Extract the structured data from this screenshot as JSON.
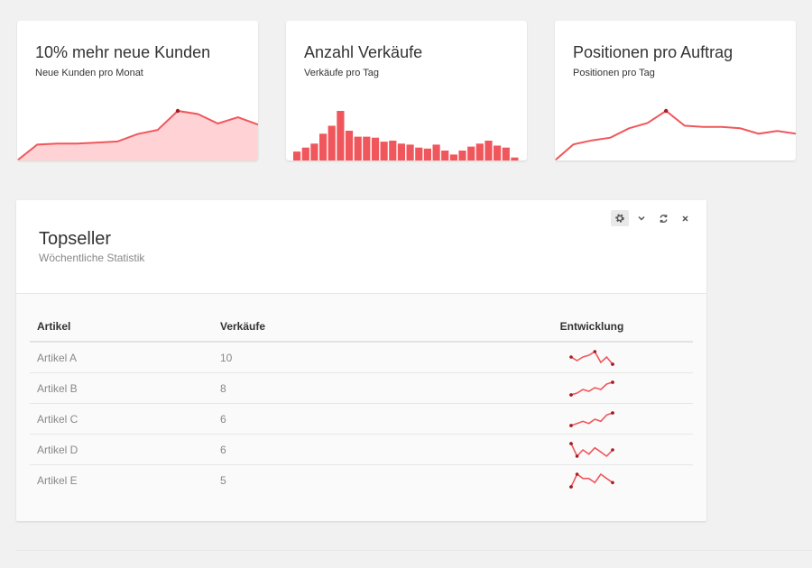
{
  "stats": [
    {
      "title": "10% mehr neue Kunden",
      "subtitle": "Neue Kunden pro Monat",
      "chart_type": "area",
      "values": [
        0,
        15,
        16,
        16,
        17,
        18,
        25,
        29,
        47,
        44,
        35,
        41,
        34
      ],
      "highlight_index": 8,
      "color": "#f0575c",
      "fill": "#ffd3d5"
    },
    {
      "title": "Anzahl Verkäufe",
      "subtitle": "Verkäufe pro Tag",
      "chart_type": "bar",
      "values": [
        9,
        13,
        17,
        27,
        35,
        50,
        30,
        24,
        24,
        23,
        19,
        20,
        17,
        16,
        13,
        12,
        16,
        10,
        6,
        10,
        14,
        17,
        20,
        15,
        13,
        3
      ],
      "color": "#f0575c"
    },
    {
      "title": "Positionen pro Auftrag",
      "subtitle": "Positionen pro Tag",
      "chart_type": "line",
      "values": [
        0,
        12,
        15,
        17,
        24,
        28,
        37,
        26,
        25,
        25,
        24,
        20,
        22,
        20
      ],
      "highlight_index": 6,
      "color": "#f0575c"
    }
  ],
  "panel": {
    "title": "Topseller",
    "subtitle": "Wöchentliche Statistik",
    "tools": [
      "gear-icon",
      "chevron-down-icon",
      "refresh-icon",
      "close-icon"
    ]
  },
  "table": {
    "headers": [
      "Artikel",
      "Verkäufe",
      "Entwicklung"
    ],
    "rows": [
      {
        "name": "Artikel A",
        "sales": "10",
        "trend": [
          6,
          4,
          6,
          7,
          9,
          3,
          6,
          2
        ]
      },
      {
        "name": "Artikel B",
        "sales": "8",
        "trend": [
          2,
          3,
          5,
          4,
          6,
          5,
          8,
          9
        ]
      },
      {
        "name": "Artikel C",
        "sales": "6",
        "trend": [
          2,
          3,
          4,
          3,
          5,
          4,
          7,
          8
        ]
      },
      {
        "name": "Artikel D",
        "sales": "6",
        "trend": [
          9,
          3,
          6,
          4,
          7,
          5,
          3,
          6
        ]
      },
      {
        "name": "Artikel E",
        "sales": "5",
        "trend": [
          2,
          5,
          4,
          4,
          3,
          5,
          4,
          3
        ]
      }
    ]
  },
  "colors": {
    "accent": "#f0575c",
    "marker": "#a01d24"
  }
}
